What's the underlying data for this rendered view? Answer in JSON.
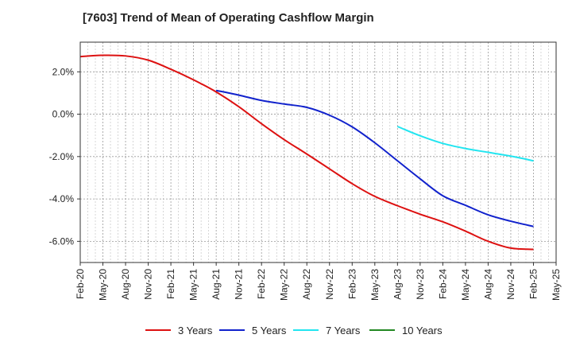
{
  "chart_data": {
    "type": "line",
    "title": "[7603]  Trend of Mean of Operating Cashflow Margin",
    "xlabel": "",
    "ylabel": "",
    "ylim": [
      -7.0,
      3.4
    ],
    "yticks": [
      2.0,
      0.0,
      -2.0,
      -4.0,
      -6.0
    ],
    "ytick_labels": [
      "2.0%",
      "0.0%",
      "-2.0%",
      "-4.0%",
      "-6.0%"
    ],
    "xticks": [
      "Feb-20",
      "May-20",
      "Aug-20",
      "Nov-20",
      "Feb-21",
      "May-21",
      "Aug-21",
      "Nov-21",
      "Feb-22",
      "May-22",
      "Aug-22",
      "Nov-22",
      "Feb-23",
      "May-23",
      "Aug-23",
      "Nov-23",
      "Feb-24",
      "May-24",
      "Aug-24",
      "Nov-24",
      "Feb-25",
      "May-25"
    ],
    "grid": true,
    "legend_position": "bottom",
    "series": [
      {
        "name": "3 Years",
        "color": "#dd1111",
        "x": [
          "Feb-20",
          "May-20",
          "Aug-20",
          "Nov-20",
          "Feb-21",
          "May-21",
          "Aug-21",
          "Nov-21",
          "Feb-22",
          "May-22",
          "Aug-22",
          "Nov-22",
          "Feb-23",
          "May-23",
          "Aug-23",
          "Nov-23",
          "Feb-24",
          "May-24",
          "Aug-24",
          "Nov-24",
          "Feb-25"
        ],
        "values": [
          2.72,
          2.78,
          2.75,
          2.55,
          2.12,
          1.62,
          1.05,
          0.35,
          -0.45,
          -1.2,
          -1.88,
          -2.58,
          -3.28,
          -3.88,
          -4.32,
          -4.72,
          -5.08,
          -5.52,
          -6.0,
          -6.32,
          -6.38
        ]
      },
      {
        "name": "5 Years",
        "color": "#1122cc",
        "x": [
          "Aug-21",
          "Nov-21",
          "Feb-22",
          "May-22",
          "Aug-22",
          "Nov-22",
          "Feb-23",
          "May-23",
          "Aug-23",
          "Nov-23",
          "Feb-24",
          "May-24",
          "Aug-24",
          "Nov-24",
          "Feb-25"
        ],
        "values": [
          1.12,
          0.9,
          0.65,
          0.48,
          0.32,
          -0.05,
          -0.6,
          -1.35,
          -2.2,
          -3.05,
          -3.85,
          -4.3,
          -4.75,
          -5.05,
          -5.3
        ]
      },
      {
        "name": "7 Years",
        "color": "#22e5f0",
        "x": [
          "Aug-23",
          "Nov-23",
          "Feb-24",
          "May-24",
          "Aug-24",
          "Nov-24",
          "Feb-25"
        ],
        "values": [
          -0.58,
          -1.02,
          -1.38,
          -1.62,
          -1.8,
          -1.98,
          -2.2
        ]
      },
      {
        "name": "10 Years",
        "color": "#228822",
        "x": [],
        "values": []
      }
    ]
  }
}
